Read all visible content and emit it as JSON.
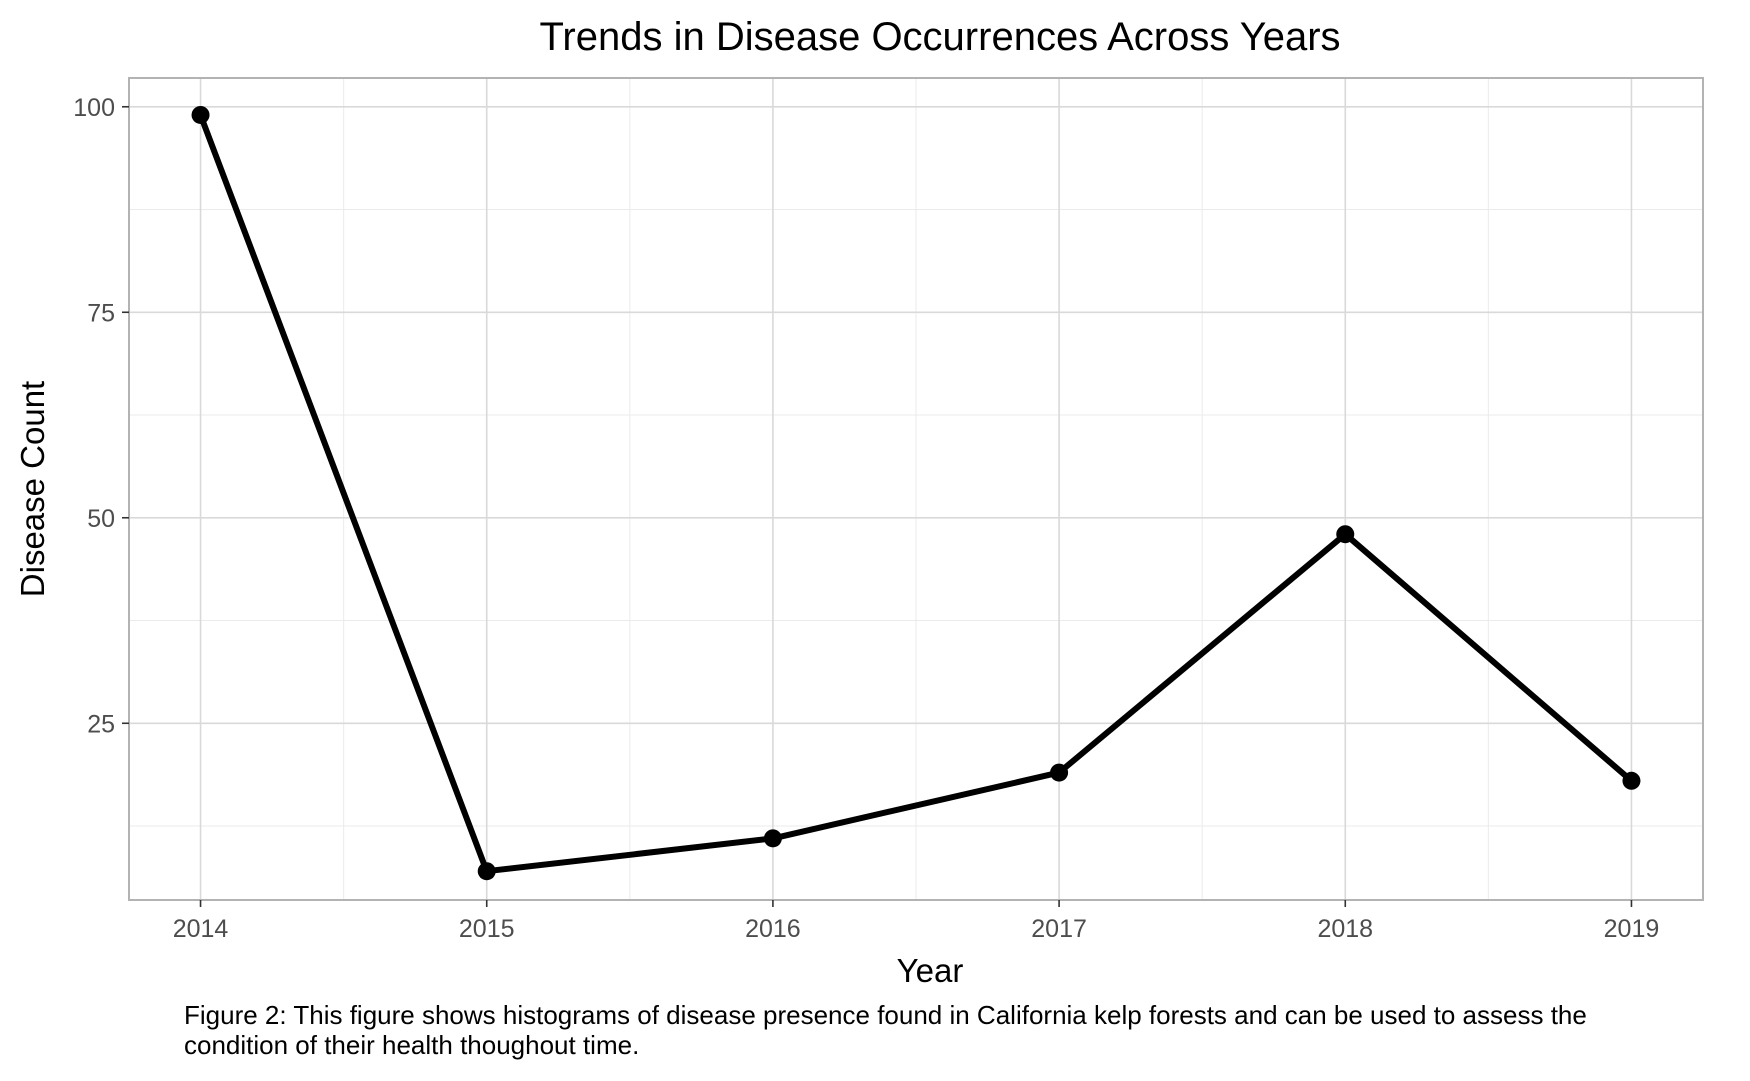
{
  "chart_data": {
    "type": "line",
    "title": "Trends in Disease Occurrences Across Years",
    "xlabel": "Year",
    "ylabel": "Disease Count",
    "x": [
      2014,
      2015,
      2016,
      2017,
      2018,
      2019
    ],
    "values": [
      99,
      7,
      11,
      19,
      48,
      18
    ],
    "xlim": [
      2013.75,
      2019.25
    ],
    "ylim": [
      3.5,
      103.5
    ],
    "y_ticks": [
      25,
      50,
      75,
      100
    ],
    "y_minor_ticks": [
      12.5,
      37.5,
      62.5,
      87.5
    ],
    "x_ticks": [
      2014,
      2015,
      2016,
      2017,
      2018,
      2019
    ],
    "x_minor_ticks": [
      2014.5,
      2015.5,
      2016.5,
      2017.5,
      2018.5
    ],
    "grid": true,
    "legend": "none",
    "line_color": "#000000",
    "grid_color": "#d9d9d9",
    "minor_grid_color": "#ebebeb",
    "panel_border_color": "#b3b3b3"
  },
  "caption": "Figure 2: This figure shows histograms of disease presence found in California kelp forests and can be used to assess the condition of their health thoughout time."
}
